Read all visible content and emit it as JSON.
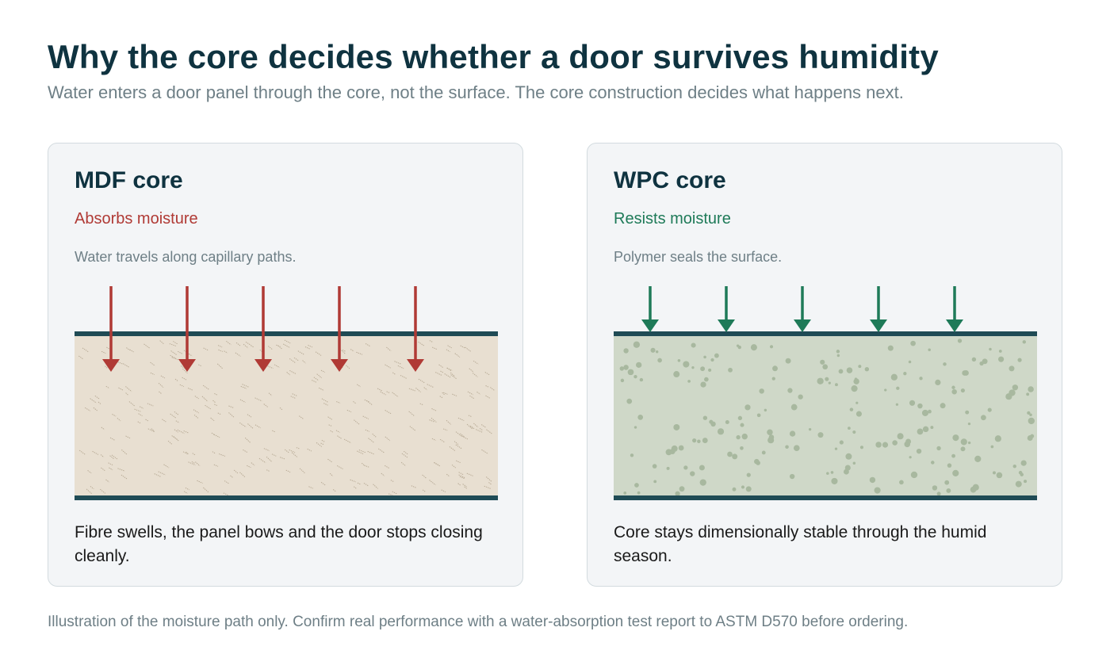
{
  "header": {
    "title": "Why the core decides whether a door survives humidity",
    "subtitle": "Water enters a door panel through the core, not the surface. The core construction decides what happens next."
  },
  "cards": [
    {
      "title": "MDF core",
      "status": "Absorbs moisture",
      "note": "Water travels along capillary paths.",
      "description": "Fibre swells, the panel bows and the door stops closing cleanly.",
      "accent_color": "#b03a35",
      "core_fill": "#e8dfd1",
      "texture": "fibre",
      "arrows_penetrate": true,
      "arrow_count": 5
    },
    {
      "title": "WPC core",
      "status": "Resists moisture",
      "note": "Polymer seals the surface.",
      "description": "Core stays dimensionally stable through the humid season.",
      "accent_color": "#1e7a58",
      "core_fill": "#cfd8c8",
      "texture": "granular",
      "arrows_penetrate": false,
      "arrow_count": 5
    }
  ],
  "colors": {
    "skin": "#1f4b55",
    "fibre_speck": "#b8ab96",
    "granule": "#a8b89f"
  },
  "footnote": "Illustration of the moisture path only. Confirm real performance with a water-absorption test report to ASTM D570 before ordering."
}
